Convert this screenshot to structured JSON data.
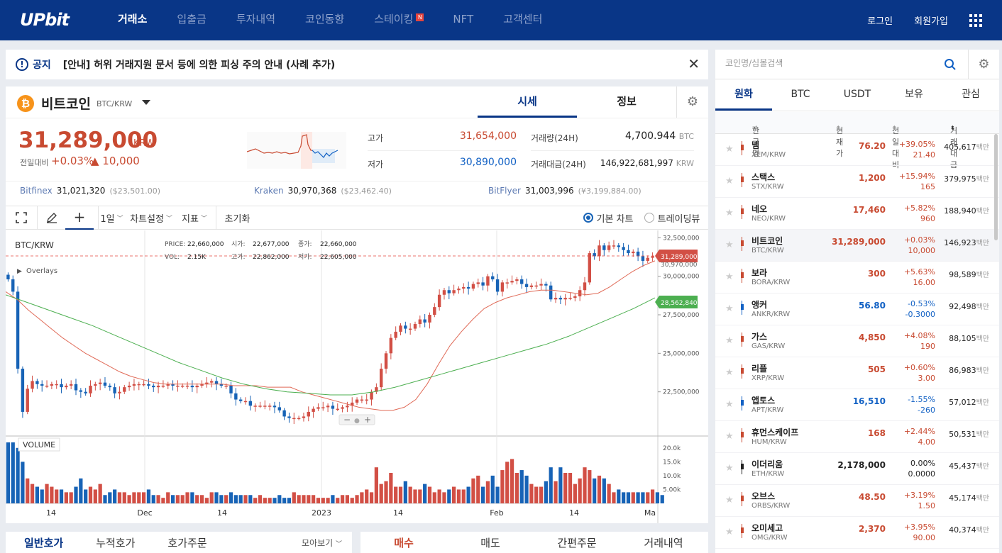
{
  "header": {
    "logo": "UPbit",
    "nav": [
      "거래소",
      "입출금",
      "투자내역",
      "코인동향",
      "스테이킹",
      "NFT",
      "고객센터"
    ],
    "staking_badge": "N",
    "login": "로그인",
    "signup": "회원가입"
  },
  "notice": {
    "label": "공지",
    "text": "[안내] 허위 거래지원 문서 등에 의한 피싱 주의 안내 (사례 추가)"
  },
  "coin": {
    "name": "비트코인",
    "pair": "BTC/KRW",
    "tab_price": "시세",
    "tab_info": "정보",
    "price": "31,289,000",
    "unit": "KRW",
    "change_label": "전일대비",
    "change_rate": "+0.03%",
    "change_amount": "▲ 10,000",
    "high_label": "고가",
    "high": "31,654,000",
    "low_label": "저가",
    "low": "30,890,000",
    "volume_label": "거래량(24H)",
    "volume": "4,700.944",
    "volume_unit": "BTC",
    "amount_label": "거래대금(24H)",
    "amount": "146,922,681,997",
    "amount_unit": "KRW"
  },
  "exchanges": [
    {
      "name": "Bitfinex",
      "value": "31,021,320",
      "sub": "($23,501.00)"
    },
    {
      "name": "Kraken",
      "value": "30,970,368",
      "sub": "($23,462.40)"
    },
    {
      "name": "BitFlyer",
      "value": "31,003,996",
      "sub": "(¥3,199,884.00)"
    }
  ],
  "toolbar": {
    "interval": "1일",
    "chart_settings": "차트설정",
    "indicator": "지표",
    "reset": "초기화",
    "basic_chart": "기본 차트",
    "tradingview": "트레이딩뷰"
  },
  "chart_info": {
    "pair": "BTC/KRW",
    "overlays": "Overlays",
    "price_label": "PRICE:",
    "price_value": "22,660,000",
    "vol_label": "VOL:",
    "vol_value": "2.15K",
    "open_label": "시가:",
    "open_value": "22,677,000",
    "high_label": "고가:",
    "high_value": "22,862,000",
    "close_label": "종가:",
    "close_value": "22,660,000",
    "low_label": "저가:",
    "low_value": "22,605,000",
    "volume_title": "VOLUME",
    "last_price_tag": "31,289,000",
    "under_tag": "30,970,000",
    "ma_tag": "28,562,840"
  },
  "chart_data": {
    "type": "candlestick",
    "y_ticks": [
      "32,500,000",
      "30,000,000",
      "27,500,000",
      "25,000,000",
      "22,500,000"
    ],
    "volume_ticks": [
      "20.0k",
      "15.0k",
      "10.0k",
      "5.00k"
    ],
    "x_ticks": [
      "14",
      "Dec",
      "14",
      "2023",
      "14",
      "Feb",
      "14",
      "Ma"
    ],
    "ylim": [
      20000000,
      32700000
    ],
    "close": [
      29.8,
      29.0,
      24.0,
      21.2,
      22.7,
      23.2,
      23.0,
      22.9,
      22.9,
      23.0,
      23.0,
      22.8,
      22.9,
      23.0,
      22.6,
      22.5,
      22.4,
      22.9,
      23.0,
      23.1,
      22.9,
      22.8,
      22.4,
      22.5,
      22.8,
      22.9,
      23.0,
      23.0,
      23.0,
      22.9,
      22.8,
      22.9,
      22.9,
      23.0,
      22.9,
      22.9,
      22.9,
      22.9,
      22.8,
      22.9,
      23.0,
      23.1,
      23.2,
      23.0,
      22.9,
      22.9,
      22.4,
      22.0,
      21.9,
      21.9,
      21.6,
      21.6,
      21.6,
      21.6,
      21.6,
      21.5,
      21.3,
      20.9,
      20.8,
      20.8,
      20.8,
      20.9,
      21.2,
      21.4,
      21.5,
      21.5,
      21.6,
      21.4,
      21.4,
      21.5,
      21.6,
      21.8,
      22.0,
      22.0,
      22.0,
      22.5,
      22.8,
      24.0,
      25.0,
      26.0,
      26.4,
      26.8,
      26.6,
      26.6,
      26.9,
      27.2,
      27.0,
      27.5,
      28.0,
      28.8,
      29.1,
      28.9,
      29.1,
      29.2,
      29.3,
      29.2,
      29.5,
      29.6,
      29.4,
      30.0,
      29.8,
      29.0,
      29.6,
      29.6,
      29.7,
      29.8,
      29.5,
      29.3,
      29.4,
      29.4,
      29.5,
      29.4,
      28.5,
      28.6,
      28.5,
      28.6,
      28.6,
      28.7,
      29.1,
      29.6,
      31.5,
      31.3,
      32.0,
      31.7,
      32.0,
      32.0,
      31.9,
      31.7,
      31.5,
      31.6,
      31.3,
      31.0,
      31.2,
      31.3
    ],
    "ma_red": [
      29.0,
      28.5,
      27.8,
      27.2,
      26.6,
      26.0,
      25.5,
      25.0,
      24.6,
      24.2,
      23.8,
      23.5,
      23.3,
      23.1,
      23.0,
      23.0,
      23.0,
      23.0,
      23.0,
      23.0,
      22.9,
      22.9,
      22.9,
      22.8,
      22.8,
      22.8,
      22.5,
      22.3,
      22.1,
      21.9,
      21.7,
      21.5,
      21.4,
      21.3,
      21.3,
      21.5,
      22.0,
      23.0,
      24.3,
      25.5,
      26.4,
      27.2,
      27.9,
      28.3,
      28.6,
      28.8,
      29.0,
      29.1,
      29.1,
      29.0,
      28.9,
      28.8,
      28.9,
      29.3,
      29.8,
      30.3,
      30.7,
      31.0
    ],
    "ma_green": [
      28.8,
      28.3,
      27.8,
      27.3,
      26.8,
      26.2,
      25.6,
      25.0,
      24.4,
      23.9,
      23.4,
      23.0,
      22.7,
      22.5,
      22.4,
      22.3,
      22.3,
      22.5,
      22.8,
      23.2,
      23.6,
      24.0,
      24.4,
      24.8,
      25.2,
      25.6,
      26.1,
      26.7,
      27.3,
      27.9,
      28.6
    ],
    "volume_k": [
      22,
      22,
      20,
      15,
      9,
      7,
      6,
      5,
      7,
      6,
      5,
      5,
      4,
      4,
      6,
      9,
      5,
      6,
      5,
      7,
      3,
      4,
      5,
      4,
      4,
      3,
      4,
      4,
      4,
      5,
      3,
      3,
      2,
      4,
      3,
      3,
      3,
      4,
      4,
      3,
      3,
      2,
      4,
      4,
      3,
      3,
      4,
      3,
      3,
      3,
      3,
      2,
      3,
      2,
      2,
      2,
      3,
      2,
      2,
      4,
      3,
      3,
      3,
      3,
      2,
      2,
      2,
      3,
      2,
      3,
      3,
      2,
      3,
      4,
      5,
      4,
      13,
      7,
      8,
      11,
      6,
      6,
      8,
      6,
      5,
      5,
      7,
      6,
      4,
      5,
      4,
      5,
      6,
      5,
      5,
      6,
      9,
      10,
      6,
      8,
      10,
      6,
      12,
      15,
      16,
      11,
      12,
      10,
      7,
      6,
      6,
      8,
      13,
      8,
      13,
      11,
      11,
      7,
      9,
      13,
      12,
      9,
      10,
      9,
      7,
      4,
      5,
      4,
      4,
      4,
      4,
      4,
      4,
      5,
      4,
      3
    ]
  },
  "sidebar": {
    "search_placeholder": "코인명/심볼검색",
    "tabs": [
      "원화",
      "BTC",
      "USDT",
      "보유",
      "관심"
    ],
    "columns": {
      "name": "한글명",
      "price": "현재가",
      "change": "전일대비",
      "amount": "거래대금"
    },
    "unit": "백만",
    "coins": [
      {
        "name": "넴",
        "pair": "XEM/KRW",
        "price": "76.20",
        "rate": "+39.05%",
        "amt": "21.40",
        "vol": "405,617",
        "dir": "up"
      },
      {
        "name": "스택스",
        "pair": "STX/KRW",
        "price": "1,200",
        "rate": "+15.94%",
        "amt": "165",
        "vol": "379,975",
        "dir": "up"
      },
      {
        "name": "네오",
        "pair": "NEO/KRW",
        "price": "17,460",
        "rate": "+5.82%",
        "amt": "960",
        "vol": "188,940",
        "dir": "up"
      },
      {
        "name": "비트코인",
        "pair": "BTC/KRW",
        "price": "31,289,000",
        "rate": "+0.03%",
        "amt": "10,000",
        "vol": "146,923",
        "dir": "up"
      },
      {
        "name": "보라",
        "pair": "BORA/KRW",
        "price": "300",
        "rate": "+5.63%",
        "amt": "16.00",
        "vol": "98,589",
        "dir": "up"
      },
      {
        "name": "앵커",
        "pair": "ANKR/KRW",
        "price": "56.80",
        "rate": "-0.53%",
        "amt": "-0.3000",
        "vol": "92,498",
        "dir": "dn"
      },
      {
        "name": "가스",
        "pair": "GAS/KRW",
        "price": "4,850",
        "rate": "+4.08%",
        "amt": "190",
        "vol": "88,105",
        "dir": "up"
      },
      {
        "name": "리플",
        "pair": "XRP/KRW",
        "price": "505",
        "rate": "+0.60%",
        "amt": "3.00",
        "vol": "86,983",
        "dir": "up"
      },
      {
        "name": "앱토스",
        "pair": "APT/KRW",
        "price": "16,510",
        "rate": "-1.55%",
        "amt": "-260",
        "vol": "57,012",
        "dir": "dn"
      },
      {
        "name": "휴먼스케이프",
        "pair": "HUM/KRW",
        "price": "168",
        "rate": "+2.44%",
        "amt": "4.00",
        "vol": "50,531",
        "dir": "up"
      },
      {
        "name": "이더리움",
        "pair": "ETH/KRW",
        "price": "2,178,000",
        "rate": "0.00%",
        "amt": "0.0000",
        "vol": "45,437",
        "dir": "ev"
      },
      {
        "name": "오브스",
        "pair": "ORBS/KRW",
        "price": "48.50",
        "rate": "+3.19%",
        "amt": "1.50",
        "vol": "45,174",
        "dir": "up"
      },
      {
        "name": "오미세고",
        "pair": "OMG/KRW",
        "price": "2,370",
        "rate": "+3.95%",
        "amt": "90.00",
        "vol": "40,374",
        "dir": "up"
      }
    ]
  },
  "orderbook": {
    "tabs": [
      "일반호가",
      "누적호가",
      "호가주문"
    ],
    "view": "모아보기"
  },
  "order": {
    "tabs": [
      "매수",
      "매도",
      "간편주문",
      "거래내역"
    ]
  }
}
